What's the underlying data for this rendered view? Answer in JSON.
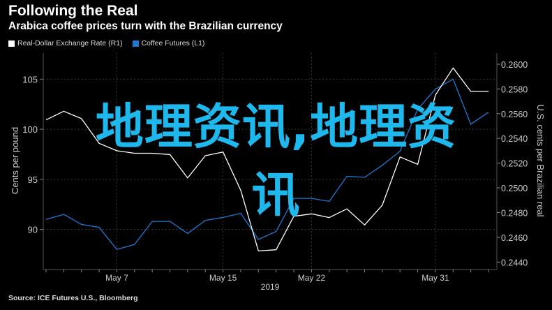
{
  "header": {
    "title": "Following the Real",
    "subtitle": "Arabica coffee prices turn with the Brazilian currency"
  },
  "legend": {
    "items": [
      {
        "label": "Real-Dollar Exchange Rate (R1)",
        "color": "#ffffff"
      },
      {
        "label": "Coffee Futures (L1)",
        "color": "#1f78d1"
      }
    ]
  },
  "footer": {
    "source": "Source: ICE Futures U.S., Bloomberg"
  },
  "overlay": {
    "line1": "地理资讯,地理资",
    "line2": "讯"
  },
  "chart_data": {
    "type": "line",
    "x_categories": [
      "May 1",
      "May 2",
      "May 3",
      "May 6",
      "May 7",
      "May 8",
      "May 9",
      "May 10",
      "May 13",
      "May 14",
      "May 15",
      "May 16",
      "May 17",
      "May 20",
      "May 21",
      "May 22",
      "May 23",
      "May 24",
      "May 27",
      "May 28",
      "May 29",
      "May 30",
      "May 31",
      "Jun 3",
      "Jun 4",
      "Jun 5"
    ],
    "x_tick_labels": [
      {
        "label": "May 7",
        "index": 4
      },
      {
        "label": "May 15",
        "index": 10
      },
      {
        "label": "May 22",
        "index": 15
      },
      {
        "label": "May 31",
        "index": 22
      }
    ],
    "x_axis_year": "2019",
    "left_axis": {
      "label": "Cents per pound",
      "ticks": [
        90,
        95,
        100,
        105
      ],
      "range": [
        86,
        107.6
      ]
    },
    "right_axis": {
      "label": "U.S. cents per Brazilian real",
      "ticks": [
        "0.2440",
        "0.2460",
        "0.2480",
        "0.2500",
        "0.2520",
        "0.2540",
        "0.2560",
        "0.2580",
        "0.2600"
      ],
      "range": [
        0.2434,
        0.2609
      ]
    },
    "series": [
      {
        "name": "Coffee Futures (L1)",
        "axis": "left",
        "color": "#1f78d1",
        "values": [
          91.0,
          91.5,
          90.5,
          90.2,
          88.0,
          88.5,
          90.8,
          90.8,
          89.6,
          90.9,
          91.2,
          91.6,
          89.0,
          89.8,
          93.1,
          93.1,
          92.8,
          95.3,
          95.2,
          96.4,
          97.8,
          102.0,
          104.0,
          105.0,
          100.5,
          101.7
        ]
      },
      {
        "name": "Real-Dollar Exchange Rate (R1)",
        "axis": "right",
        "color": "#ffffff",
        "values": [
          0.2555,
          0.2562,
          0.2556,
          0.2536,
          0.253,
          0.2528,
          0.2528,
          0.2527,
          0.2508,
          0.2526,
          0.2529,
          0.2498,
          0.2449,
          0.245,
          0.2477,
          0.2479,
          0.2476,
          0.2483,
          0.247,
          0.2486,
          0.2525,
          0.2519,
          0.2575,
          0.2597,
          0.2578,
          0.2578
        ]
      }
    ]
  }
}
